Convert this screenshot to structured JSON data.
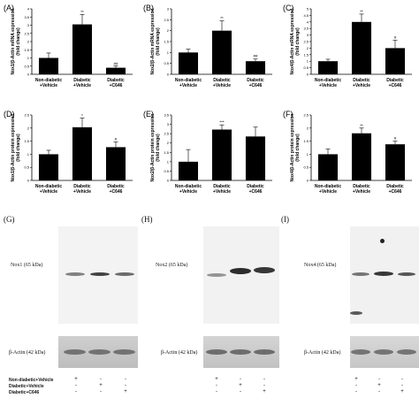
{
  "chart_data": [
    {
      "id": "A",
      "type": "bar",
      "panel_letter": "(A)",
      "ylabel": "Nox1/β-Actin mRNA expression",
      "ylabel2": "(fold change)",
      "categories": [
        [
          "Non-diabetic",
          "+Vehicle"
        ],
        [
          "Diabetic",
          "+Vehicle"
        ],
        [
          "Diabetic",
          "+C646"
        ]
      ],
      "values": [
        1.0,
        3.05,
        0.4
      ],
      "errors": [
        0.3,
        0.6,
        0.1
      ],
      "annotations": [
        "",
        "**",
        "##"
      ],
      "ylim": [
        0,
        4
      ],
      "yticks": [
        "0",
        "0.5",
        "1",
        "1.5",
        "2",
        "2.5",
        "3",
        "3.5",
        "4"
      ]
    },
    {
      "id": "B",
      "type": "bar",
      "panel_letter": "(B)",
      "ylabel": "Nox2/β-Actin mRNA expression",
      "ylabel2": "(fold change)",
      "categories": [
        [
          "Non-diabetic",
          "+Vehicle"
        ],
        [
          "Diabetic",
          "+Vehicle"
        ],
        [
          "Diabetic",
          "+C646"
        ]
      ],
      "values": [
        1.0,
        2.0,
        0.6
      ],
      "errors": [
        0.15,
        0.45,
        0.1
      ],
      "annotations": [
        "",
        "**",
        "##"
      ],
      "ylim": [
        0,
        3
      ],
      "yticks": [
        "0",
        "0.5",
        "1",
        "1.5",
        "2",
        "2.5",
        "3"
      ]
    },
    {
      "id": "C",
      "type": "bar",
      "panel_letter": "(C)",
      "ylabel": "Nox4/β-Actin mRNA expression",
      "ylabel2": "(fold change)",
      "categories": [
        [
          "Non-diabetic",
          "+Vehicle"
        ],
        [
          "Diabetic",
          "+Vehicle"
        ],
        [
          "Diabetic",
          "+C646"
        ]
      ],
      "values": [
        1.0,
        4.0,
        2.0
      ],
      "errors": [
        0.15,
        0.6,
        0.6
      ],
      "annotations": [
        "",
        "**",
        "#"
      ],
      "ylim": [
        0,
        5
      ],
      "yticks": [
        "0",
        "0.5",
        "1",
        "1.5",
        "2",
        "2.5",
        "3",
        "3.5",
        "4",
        "4.5",
        "5"
      ]
    },
    {
      "id": "D",
      "type": "bar",
      "panel_letter": "(D)",
      "ylabel": "Nox1/β-Actin protein expression",
      "ylabel2": "(fold change)",
      "categories": [
        [
          "Non-diabetic",
          "+Vehicle"
        ],
        [
          "Diabetic",
          "+Vehicle"
        ],
        [
          "Diabetic",
          "+C646"
        ]
      ],
      "values": [
        1.0,
        2.03,
        1.27
      ],
      "errors": [
        0.15,
        0.35,
        0.2
      ],
      "annotations": [
        "",
        "*",
        "#"
      ],
      "ylim": [
        0,
        2.5
      ],
      "yticks": [
        "0",
        "0.5",
        "1",
        "1.5",
        "2",
        "2.5"
      ]
    },
    {
      "id": "E",
      "type": "bar",
      "panel_letter": "(E)",
      "ylabel": "Nox2/β-Actin protein expression",
      "ylabel2": "(fold change)",
      "categories": [
        [
          "Non-diabetic",
          "+Vehicle"
        ],
        [
          "Diabetic",
          "+Vehicle"
        ],
        [
          "Diabetic",
          "+C646"
        ]
      ],
      "values": [
        1.0,
        2.72,
        2.35
      ],
      "errors": [
        0.65,
        0.25,
        0.5
      ],
      "annotations": [
        "",
        "***",
        ""
      ],
      "ylim": [
        0,
        3.5
      ],
      "yticks": [
        "0",
        "0.5",
        "1",
        "1.5",
        "2",
        "2.5",
        "3",
        "3.5"
      ]
    },
    {
      "id": "F",
      "type": "bar",
      "panel_letter": "(F)",
      "ylabel": "Nox4/β-Actin protein expression",
      "ylabel2": "(fold change)",
      "categories": [
        [
          "Non-diabetic",
          "+Vehicle"
        ],
        [
          "Diabetic",
          "+Vehicle"
        ],
        [
          "Diabetic",
          "+C646"
        ]
      ],
      "values": [
        1.0,
        1.8,
        1.38
      ],
      "errors": [
        0.2,
        0.2,
        0.12
      ],
      "annotations": [
        "",
        "**",
        "#"
      ],
      "ylim": [
        0,
        2.5
      ],
      "yticks": [
        "0",
        "0.5",
        "1",
        "1.5",
        "2",
        "2.5"
      ]
    }
  ],
  "blots": [
    {
      "letter": "(G)",
      "label": "Nox1 (65 kDa)",
      "actin": "β-Actin (42 kDa)",
      "intensity": [
        0.55,
        0.85,
        0.65
      ]
    },
    {
      "letter": "(H)",
      "label": "Nox2 (65 kDa)",
      "actin": "β-Actin (42 kDa)",
      "intensity": [
        0.45,
        0.95,
        0.9
      ]
    },
    {
      "letter": "(I)",
      "label": "Nox4 (65 kDa)",
      "actin": "β-Actin (42 kDa)",
      "intensity": [
        0.6,
        0.9,
        0.75
      ]
    }
  ],
  "legend": {
    "rows": [
      "Non-diabetic+Vehicle",
      "Diabetic+Vehicle",
      "Diabetic+C646"
    ],
    "signs": [
      [
        "+",
        "-",
        "-"
      ],
      [
        "-",
        "+",
        "-"
      ],
      [
        "-",
        "-",
        "+"
      ]
    ]
  }
}
